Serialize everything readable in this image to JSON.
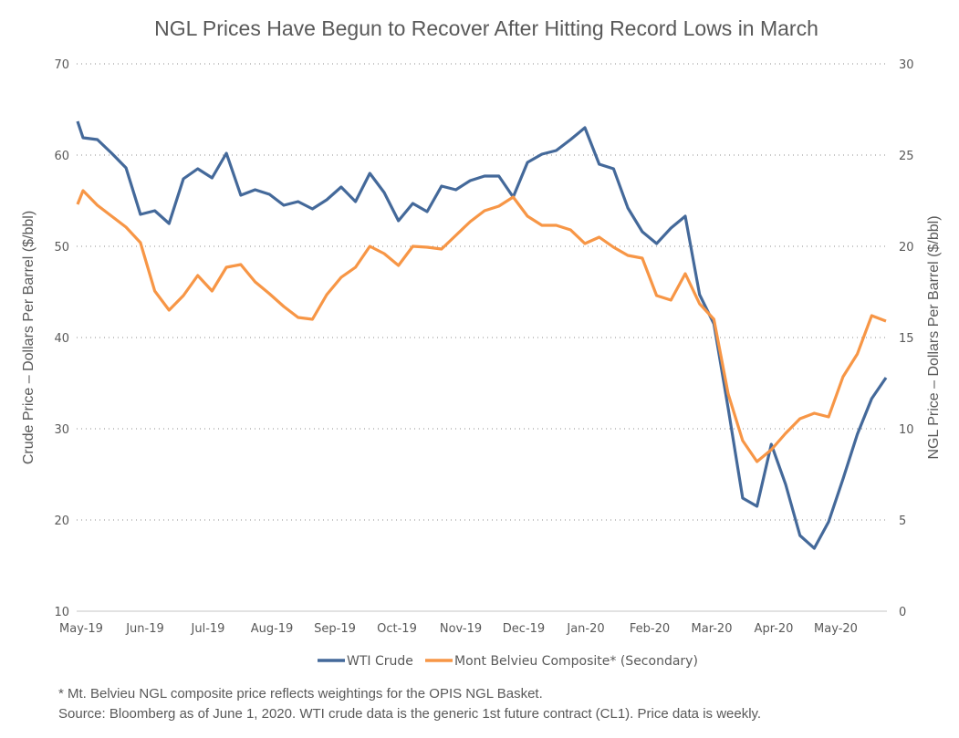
{
  "chart_data": {
    "type": "line",
    "title": "NGL Prices Have Begun to Recover After Hitting Record Lows in March",
    "xlabel": "",
    "ylabel": "Crude Price – Dollars Per Barrel ($/bbl)",
    "y2label": "NGL Price – Dollars Per Barrel ($/bbl)",
    "ylim": [
      10,
      70
    ],
    "y2lim": [
      0,
      30
    ],
    "yticks": [
      "10",
      "20",
      "30",
      "40",
      "50",
      "60",
      "70"
    ],
    "y2ticks": [
      "0",
      "5",
      "10",
      "15",
      "20",
      "25",
      "30"
    ],
    "xticks": [
      "May-19",
      "Jun-19",
      "Jul-19",
      "Aug-19",
      "Sep-19",
      "Oct-19",
      "Nov-19",
      "Dec-19",
      "Jan-20",
      "Feb-20",
      "Mar-20",
      "Apr-20",
      "May-20"
    ],
    "grid": "horizontal-dotted",
    "legend_position": "bottom",
    "series": [
      {
        "name": "WTI Crude",
        "axis": "primary",
        "color": "#44699A",
        "values": [
          63.7,
          61.9,
          61.7,
          60.2,
          58.6,
          53.5,
          53.9,
          52.5,
          57.4,
          58.5,
          57.5,
          60.2,
          55.6,
          56.2,
          55.7,
          54.5,
          54.9,
          54.1,
          55.1,
          56.5,
          54.9,
          58.0,
          55.9,
          52.8,
          54.7,
          53.8,
          56.6,
          56.2,
          57.2,
          57.7,
          57.7,
          55.4,
          59.2,
          60.1,
          60.5,
          61.7,
          63.0,
          59.0,
          58.5,
          54.2,
          51.6,
          50.3,
          52.0,
          53.3,
          44.7,
          41.5,
          32.2,
          22.4,
          21.5,
          28.3,
          23.9,
          18.3,
          16.9,
          19.8,
          24.5,
          29.4,
          33.3,
          35.6
        ]
      },
      {
        "name": "Mont Belvieu Composite* (Secondary)",
        "axis": "secondary",
        "color": "#F79646",
        "values": [
          22.3,
          23.05,
          22.25,
          21.65,
          21.05,
          20.2,
          17.55,
          16.5,
          17.3,
          18.4,
          17.55,
          18.85,
          19.0,
          18.05,
          17.4,
          16.7,
          16.1,
          16.0,
          17.35,
          18.3,
          18.85,
          20.0,
          19.6,
          18.95,
          20.0,
          19.95,
          19.85,
          20.6,
          21.35,
          21.95,
          22.2,
          22.7,
          21.65,
          21.15,
          21.15,
          20.9,
          20.15,
          20.5,
          19.95,
          19.5,
          19.35,
          17.3,
          17.05,
          18.5,
          16.85,
          16.0,
          11.9,
          9.35,
          8.2,
          8.85,
          9.75,
          10.55,
          10.85,
          10.65,
          12.85,
          14.1,
          16.2,
          15.9
        ]
      }
    ],
    "legend": [
      "WTI Crude",
      "Mont Belvieu Composite* (Secondary)"
    ]
  },
  "footnotes": {
    "line1": "* Mt. Belvieu NGL composite price reflects weightings for the OPIS NGL Basket.",
    "line2": "Source: Bloomberg as of June 1, 2020. WTI crude data is the generic 1st future contract (CL1). Price data is weekly."
  }
}
